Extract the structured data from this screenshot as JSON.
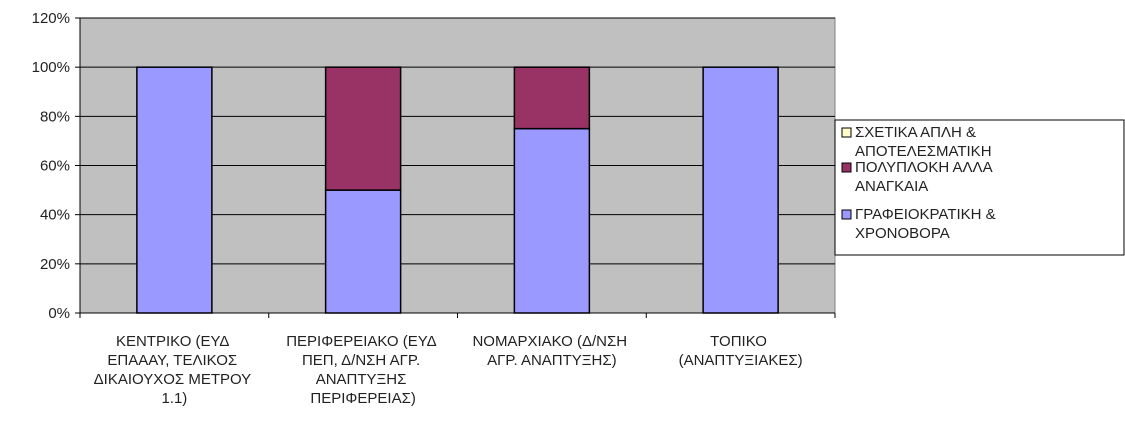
{
  "chart_data": {
    "type": "stacked_bar",
    "categories": [
      "ΚΕΝΤΡΙΚΟ (ΕΥΔ ΕΠΑΑΑΥ, ΤΕΛΙΚΟΣ ΔΙΚΑΙΟΥΧΟΣ ΜΕΤΡΟΥ 1.1)",
      "ΠΕΡΙΦΕΡΕΙΑΚΟ (ΕΥΔ ΠΕΠ, Δ/ΝΣΗ ΑΓΡ. ΑΝΑΠΤΥΞΗΣ ΠΕΡΙΦΕΡΕΙΑΣ)",
      "ΝΟΜΑΡΧΙΑΚΟ (Δ/ΝΣΗ ΑΓΡ. ΑΝΑΠΤΥΞΗΣ)",
      "ΤΟΠΙΚΟ (ΑΝΑΠΤΥΞΙΑΚΕΣ)"
    ],
    "series": [
      {
        "name": "ΓΡΑΦΕΙΟΚΡΑΤΙΚΗ & ΧΡΟΝΟΒΟΡΑ",
        "color": "#9999ff",
        "values": [
          100,
          50,
          75,
          100
        ]
      },
      {
        "name": "ΠΟΛΥΠΛΟΚΗ ΑΛΛΑ ΑΝΑΓΚΑΙΑ",
        "color": "#993366",
        "values": [
          0,
          50,
          25,
          0
        ]
      },
      {
        "name": "ΣΧΕΤΙΚΑ ΑΠΛΗ & ΑΠΟΤΕΛΕΣΜΑΤΙΚΗ",
        "color": "#ffffcc",
        "values": [
          0,
          0,
          0,
          0
        ]
      }
    ],
    "ylim": [
      0,
      120
    ],
    "yticks": [
      {
        "value": 0,
        "label": "0%"
      },
      {
        "value": 20,
        "label": "20%"
      },
      {
        "value": 40,
        "label": "40%"
      },
      {
        "value": 60,
        "label": "60%"
      },
      {
        "value": 80,
        "label": "80%"
      },
      {
        "value": 100,
        "label": "100%"
      },
      {
        "value": 120,
        "label": "120%"
      }
    ],
    "grid": true,
    "legend": "right"
  }
}
